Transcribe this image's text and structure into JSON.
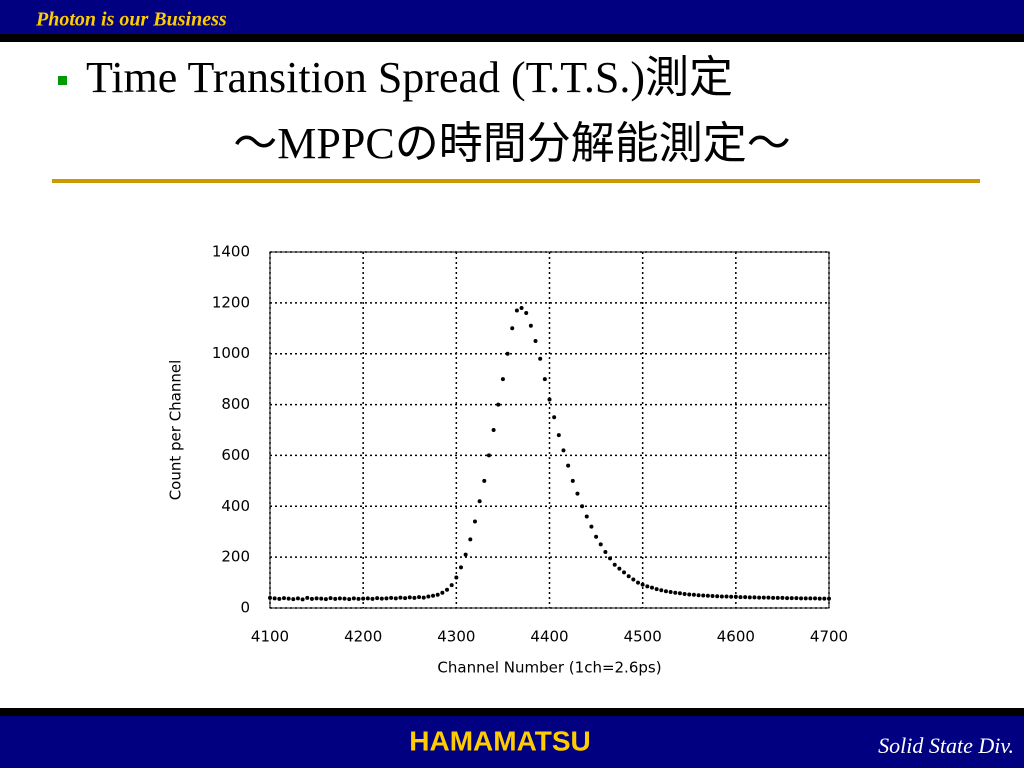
{
  "header": {
    "text": "Photon is our Business"
  },
  "title": {
    "line1": "Time Transition Spread (T.T.S.)測定",
    "line2": "～MPPCの時間分解能測定～"
  },
  "footer": {
    "brand": "HAMAMATSU",
    "division": "Solid State Div."
  },
  "chart_data": {
    "type": "scatter",
    "xlabel": "Channel Number (1ch=2.6ps)",
    "ylabel": "Count per Channel",
    "xlim": [
      4100,
      4700
    ],
    "ylim": [
      0,
      1400
    ],
    "xticks": [
      4100,
      4200,
      4300,
      4400,
      4500,
      4600,
      4700
    ],
    "yticks": [
      0,
      200,
      400,
      600,
      800,
      1000,
      1200,
      1400
    ],
    "grid": true,
    "color": "#000000",
    "x": [
      4100,
      4105,
      4110,
      4115,
      4120,
      4125,
      4130,
      4135,
      4140,
      4145,
      4150,
      4155,
      4160,
      4165,
      4170,
      4175,
      4180,
      4185,
      4190,
      4195,
      4200,
      4205,
      4210,
      4215,
      4220,
      4225,
      4230,
      4235,
      4240,
      4245,
      4250,
      4255,
      4260,
      4265,
      4270,
      4275,
      4280,
      4285,
      4290,
      4295,
      4300,
      4305,
      4310,
      4315,
      4320,
      4325,
      4330,
      4335,
      4340,
      4345,
      4350,
      4355,
      4360,
      4365,
      4370,
      4375,
      4380,
      4385,
      4390,
      4395,
      4400,
      4405,
      4410,
      4415,
      4420,
      4425,
      4430,
      4435,
      4440,
      4445,
      4450,
      4455,
      4460,
      4465,
      4470,
      4475,
      4480,
      4485,
      4490,
      4495,
      4500,
      4505,
      4510,
      4515,
      4520,
      4525,
      4530,
      4535,
      4540,
      4545,
      4550,
      4555,
      4560,
      4565,
      4570,
      4575,
      4580,
      4585,
      4590,
      4595,
      4600,
      4605,
      4610,
      4615,
      4620,
      4625,
      4630,
      4635,
      4640,
      4645,
      4650,
      4655,
      4660,
      4665,
      4670,
      4675,
      4680,
      4685,
      4690,
      4695,
      4700
    ],
    "values": [
      40,
      38,
      36,
      39,
      37,
      35,
      38,
      34,
      40,
      36,
      38,
      37,
      35,
      39,
      36,
      38,
      37,
      35,
      38,
      36,
      37,
      38,
      36,
      39,
      37,
      38,
      40,
      38,
      41,
      39,
      42,
      40,
      43,
      41,
      45,
      48,
      52,
      60,
      72,
      90,
      120,
      160,
      210,
      270,
      340,
      420,
      500,
      600,
      700,
      800,
      900,
      1000,
      1100,
      1170,
      1180,
      1160,
      1110,
      1050,
      980,
      900,
      820,
      750,
      680,
      620,
      560,
      500,
      450,
      400,
      360,
      320,
      280,
      250,
      220,
      195,
      170,
      155,
      140,
      125,
      112,
      100,
      92,
      85,
      80,
      74,
      70,
      66,
      63,
      60,
      58,
      55,
      53,
      52,
      50,
      49,
      48,
      47,
      46,
      45,
      45,
      44,
      44,
      43,
      43,
      42,
      42,
      41,
      41,
      41,
      40,
      40,
      40,
      39,
      39,
      39,
      38,
      38,
      38,
      38,
      37,
      37,
      37
    ]
  }
}
